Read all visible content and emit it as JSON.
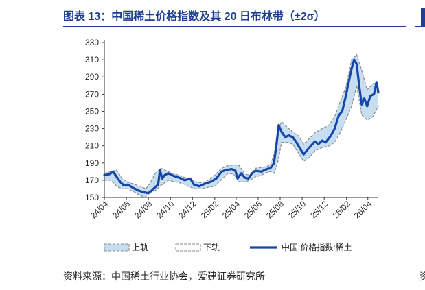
{
  "header": {
    "title": "图表 13：中国稀土价格指数及其 20 日布林带（±2σ）",
    "edge_glyph": "资"
  },
  "footer": {
    "source": "资料来源：中国稀土行业协会，爱建证券研究所"
  },
  "colors": {
    "accent": "#1f3f93",
    "main_line": "#1646a8",
    "band_fill": "#c6ddf2",
    "band_edge": "#8a8a8a"
  },
  "chart_data": {
    "type": "line",
    "title": "",
    "xlabel": "",
    "ylabel": "",
    "ylim": [
      150,
      330
    ],
    "yticks": [
      150,
      170,
      190,
      210,
      230,
      250,
      270,
      290,
      310,
      330
    ],
    "x_range": [
      "2024-04-01",
      "2026-04-30"
    ],
    "x_ticks": [
      {
        "date": "2024-04-01",
        "label": "24/04"
      },
      {
        "date": "2024-06-01",
        "label": "24/06"
      },
      {
        "date": "2024-08-01",
        "label": "24/08"
      },
      {
        "date": "2024-10-01",
        "label": "24/10"
      },
      {
        "date": "2024-12-01",
        "label": "24/12"
      },
      {
        "date": "2025-02-01",
        "label": "25/02"
      },
      {
        "date": "2025-04-01",
        "label": "25/04"
      },
      {
        "date": "2025-06-01",
        "label": "25/06"
      },
      {
        "date": "2025-08-01",
        "label": "25/08"
      },
      {
        "date": "2025-10-01",
        "label": "25/10"
      },
      {
        "date": "2025-12-01",
        "label": "25/12"
      },
      {
        "date": "2026-02-01",
        "label": "26/02"
      },
      {
        "date": "2026-04-01",
        "label": "26/04"
      }
    ],
    "grid": false,
    "legend_position": "bottom",
    "series": [
      {
        "name": "上轨",
        "style": "band-upper",
        "points": [
          [
            "2024-04-01",
            178
          ],
          [
            "2024-04-20",
            180
          ],
          [
            "2024-05-05",
            182
          ],
          [
            "2024-05-20",
            172
          ],
          [
            "2024-06-05",
            168
          ],
          [
            "2024-06-25",
            165
          ],
          [
            "2024-07-10",
            163
          ],
          [
            "2024-07-25",
            160
          ],
          [
            "2024-08-05",
            166
          ],
          [
            "2024-08-20",
            178
          ],
          [
            "2024-09-05",
            184
          ],
          [
            "2024-09-25",
            180
          ],
          [
            "2024-10-15",
            177
          ],
          [
            "2024-11-05",
            174
          ],
          [
            "2024-11-25",
            171
          ],
          [
            "2024-12-10",
            168
          ],
          [
            "2024-12-28",
            167
          ],
          [
            "2025-01-15",
            170
          ],
          [
            "2025-02-01",
            176
          ],
          [
            "2025-02-20",
            184
          ],
          [
            "2025-03-10",
            187
          ],
          [
            "2025-03-25",
            188
          ],
          [
            "2025-04-10",
            187
          ],
          [
            "2025-04-25",
            177
          ],
          [
            "2025-05-10",
            176
          ],
          [
            "2025-05-25",
            184
          ],
          [
            "2025-06-10",
            185
          ],
          [
            "2025-06-25",
            186
          ],
          [
            "2025-07-05",
            188
          ],
          [
            "2025-07-15",
            200
          ],
          [
            "2025-07-25",
            228
          ],
          [
            "2025-08-05",
            238
          ],
          [
            "2025-08-20",
            232
          ],
          [
            "2025-09-05",
            226
          ],
          [
            "2025-09-20",
            222
          ],
          [
            "2025-10-05",
            212
          ],
          [
            "2025-10-20",
            218
          ],
          [
            "2025-11-05",
            225
          ],
          [
            "2025-11-25",
            230
          ],
          [
            "2025-12-15",
            234
          ],
          [
            "2025-12-30",
            244
          ],
          [
            "2026-01-15",
            262
          ],
          [
            "2026-01-30",
            278
          ],
          [
            "2026-02-15",
            310
          ],
          [
            "2026-03-01",
            316
          ],
          [
            "2026-03-15",
            298
          ],
          [
            "2026-03-30",
            275
          ],
          [
            "2026-04-15",
            282
          ],
          [
            "2026-04-30",
            284
          ]
        ]
      },
      {
        "name": "下轨",
        "style": "band-lower",
        "points": [
          [
            "2024-04-01",
            170
          ],
          [
            "2024-04-20",
            170
          ],
          [
            "2024-05-05",
            163
          ],
          [
            "2024-05-20",
            160
          ],
          [
            "2024-06-05",
            160
          ],
          [
            "2024-06-25",
            156
          ],
          [
            "2024-07-10",
            152
          ],
          [
            "2024-07-25",
            150
          ],
          [
            "2024-08-05",
            156
          ],
          [
            "2024-08-20",
            158
          ],
          [
            "2024-09-05",
            164
          ],
          [
            "2024-09-25",
            170
          ],
          [
            "2024-10-15",
            168
          ],
          [
            "2024-11-05",
            166
          ],
          [
            "2024-11-25",
            162
          ],
          [
            "2024-12-10",
            160
          ],
          [
            "2024-12-28",
            160
          ],
          [
            "2025-01-15",
            162
          ],
          [
            "2025-02-01",
            163
          ],
          [
            "2025-02-20",
            171
          ],
          [
            "2025-03-10",
            178
          ],
          [
            "2025-03-25",
            177
          ],
          [
            "2025-04-10",
            168
          ],
          [
            "2025-04-25",
            168
          ],
          [
            "2025-05-10",
            170
          ],
          [
            "2025-05-25",
            174
          ],
          [
            "2025-06-10",
            176
          ],
          [
            "2025-06-25",
            179
          ],
          [
            "2025-07-05",
            180
          ],
          [
            "2025-07-15",
            178
          ],
          [
            "2025-07-25",
            190
          ],
          [
            "2025-08-05",
            214
          ],
          [
            "2025-08-20",
            214
          ],
          [
            "2025-09-05",
            212
          ],
          [
            "2025-09-20",
            202
          ],
          [
            "2025-10-05",
            192
          ],
          [
            "2025-10-20",
            196
          ],
          [
            "2025-11-05",
            204
          ],
          [
            "2025-11-25",
            208
          ],
          [
            "2025-12-15",
            210
          ],
          [
            "2025-12-30",
            214
          ],
          [
            "2026-01-15",
            226
          ],
          [
            "2026-01-30",
            240
          ],
          [
            "2026-02-15",
            256
          ],
          [
            "2026-03-01",
            280
          ],
          [
            "2026-03-15",
            246
          ],
          [
            "2026-03-30",
            240
          ],
          [
            "2026-04-15",
            244
          ],
          [
            "2026-04-30",
            256
          ]
        ]
      },
      {
        "name": "中国:价格指数:稀土",
        "style": "main",
        "points": [
          [
            "2024-04-01",
            176
          ],
          [
            "2024-04-15",
            177
          ],
          [
            "2024-04-25",
            180
          ],
          [
            "2024-05-05",
            174
          ],
          [
            "2024-05-15",
            168
          ],
          [
            "2024-05-25",
            164
          ],
          [
            "2024-06-05",
            165
          ],
          [
            "2024-06-20",
            161
          ],
          [
            "2024-07-05",
            158
          ],
          [
            "2024-07-20",
            156
          ],
          [
            "2024-08-01",
            155
          ],
          [
            "2024-08-10",
            158
          ],
          [
            "2024-08-20",
            162
          ],
          [
            "2024-08-28",
            165
          ],
          [
            "2024-09-02",
            182
          ],
          [
            "2024-09-08",
            172
          ],
          [
            "2024-09-15",
            176
          ],
          [
            "2024-09-25",
            178
          ],
          [
            "2024-10-10",
            175
          ],
          [
            "2024-10-25",
            173
          ],
          [
            "2024-11-10",
            170
          ],
          [
            "2024-11-25",
            172
          ],
          [
            "2024-12-05",
            165
          ],
          [
            "2024-12-20",
            163
          ],
          [
            "2025-01-05",
            166
          ],
          [
            "2025-01-20",
            168
          ],
          [
            "2025-02-05",
            172
          ],
          [
            "2025-02-20",
            180
          ],
          [
            "2025-03-05",
            182
          ],
          [
            "2025-03-20",
            183
          ],
          [
            "2025-03-30",
            181
          ],
          [
            "2025-04-05",
            172
          ],
          [
            "2025-04-15",
            178
          ],
          [
            "2025-04-25",
            173
          ],
          [
            "2025-05-05",
            172
          ],
          [
            "2025-05-15",
            178
          ],
          [
            "2025-05-25",
            181
          ],
          [
            "2025-06-10",
            180
          ],
          [
            "2025-06-25",
            183
          ],
          [
            "2025-07-05",
            184
          ],
          [
            "2025-07-15",
            190
          ],
          [
            "2025-07-22",
            212
          ],
          [
            "2025-07-28",
            234
          ],
          [
            "2025-08-05",
            226
          ],
          [
            "2025-08-15",
            220
          ],
          [
            "2025-08-25",
            222
          ],
          [
            "2025-09-05",
            220
          ],
          [
            "2025-09-15",
            214
          ],
          [
            "2025-09-25",
            207
          ],
          [
            "2025-10-05",
            200
          ],
          [
            "2025-10-15",
            205
          ],
          [
            "2025-10-25",
            210
          ],
          [
            "2025-11-05",
            215
          ],
          [
            "2025-11-15",
            212
          ],
          [
            "2025-11-25",
            216
          ],
          [
            "2025-12-05",
            214
          ],
          [
            "2025-12-20",
            222
          ],
          [
            "2025-12-30",
            230
          ],
          [
            "2026-01-10",
            245
          ],
          [
            "2026-01-20",
            250
          ],
          [
            "2026-01-30",
            268
          ],
          [
            "2026-02-05",
            280
          ],
          [
            "2026-02-15",
            300
          ],
          [
            "2026-02-22",
            310
          ],
          [
            "2026-03-01",
            305
          ],
          [
            "2026-03-08",
            280
          ],
          [
            "2026-03-15",
            258
          ],
          [
            "2026-03-22",
            265
          ],
          [
            "2026-03-30",
            256
          ],
          [
            "2026-04-08",
            268
          ],
          [
            "2026-04-18",
            270
          ],
          [
            "2026-04-25",
            284
          ],
          [
            "2026-04-30",
            272
          ]
        ]
      }
    ]
  }
}
